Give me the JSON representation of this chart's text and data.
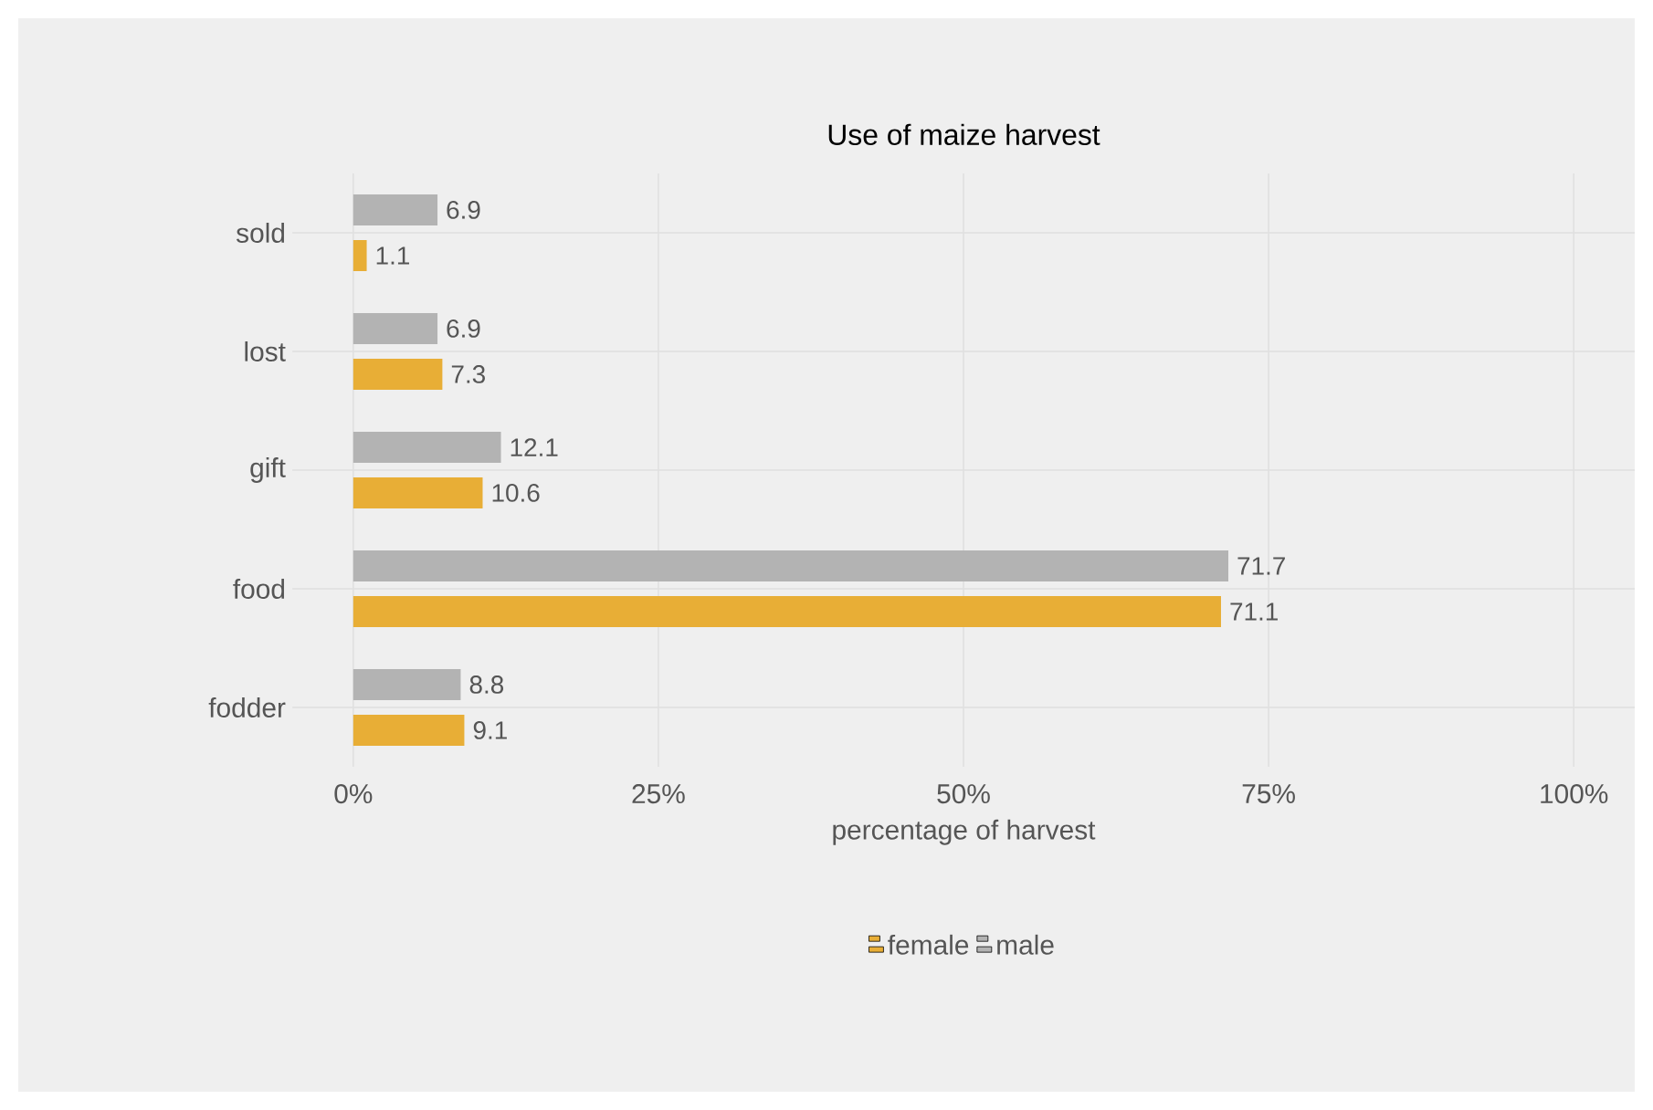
{
  "chart_data": {
    "type": "bar",
    "orientation": "horizontal",
    "title": "Use of maize harvest",
    "xlabel": "percentage of harvest",
    "categories": [
      "sold",
      "lost",
      "gift",
      "food",
      "fodder"
    ],
    "series": [
      {
        "name": "female",
        "color": "#e8ae36",
        "values": [
          1.1,
          7.3,
          10.6,
          71.1,
          9.1
        ]
      },
      {
        "name": "male",
        "color": "#b3b3b3",
        "values": [
          6.9,
          6.9,
          12.1,
          71.7,
          8.8
        ]
      }
    ],
    "xlim": [
      -5,
      105
    ],
    "xticks": [
      {
        "value": 0,
        "label": "0%"
      },
      {
        "value": 25,
        "label": "25%"
      },
      {
        "value": 50,
        "label": "50%"
      },
      {
        "value": 75,
        "label": "75%"
      },
      {
        "value": 100,
        "label": "100%"
      }
    ],
    "grid": true,
    "legend": "bottom",
    "data_labels": true
  }
}
